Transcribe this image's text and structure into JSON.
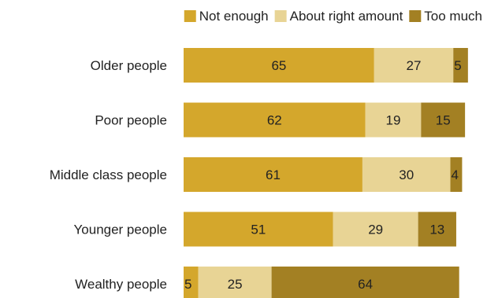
{
  "chart_data": {
    "type": "bar",
    "orientation": "horizontal",
    "stacked": true,
    "legend_position": "top-right",
    "grid": false,
    "categories": [
      "Older people",
      "Poor people",
      "Middle class people",
      "Younger people",
      "Wealthy people"
    ],
    "series": [
      {
        "name": "Not enough",
        "color": "#D4A72C",
        "values": [
          65,
          62,
          61,
          51,
          5
        ]
      },
      {
        "name": "About right amount",
        "color": "#E8D495",
        "values": [
          27,
          19,
          30,
          29,
          25
        ]
      },
      {
        "name": "Too much",
        "color": "#A38023",
        "values": [
          5,
          15,
          4,
          13,
          64
        ]
      }
    ]
  }
}
